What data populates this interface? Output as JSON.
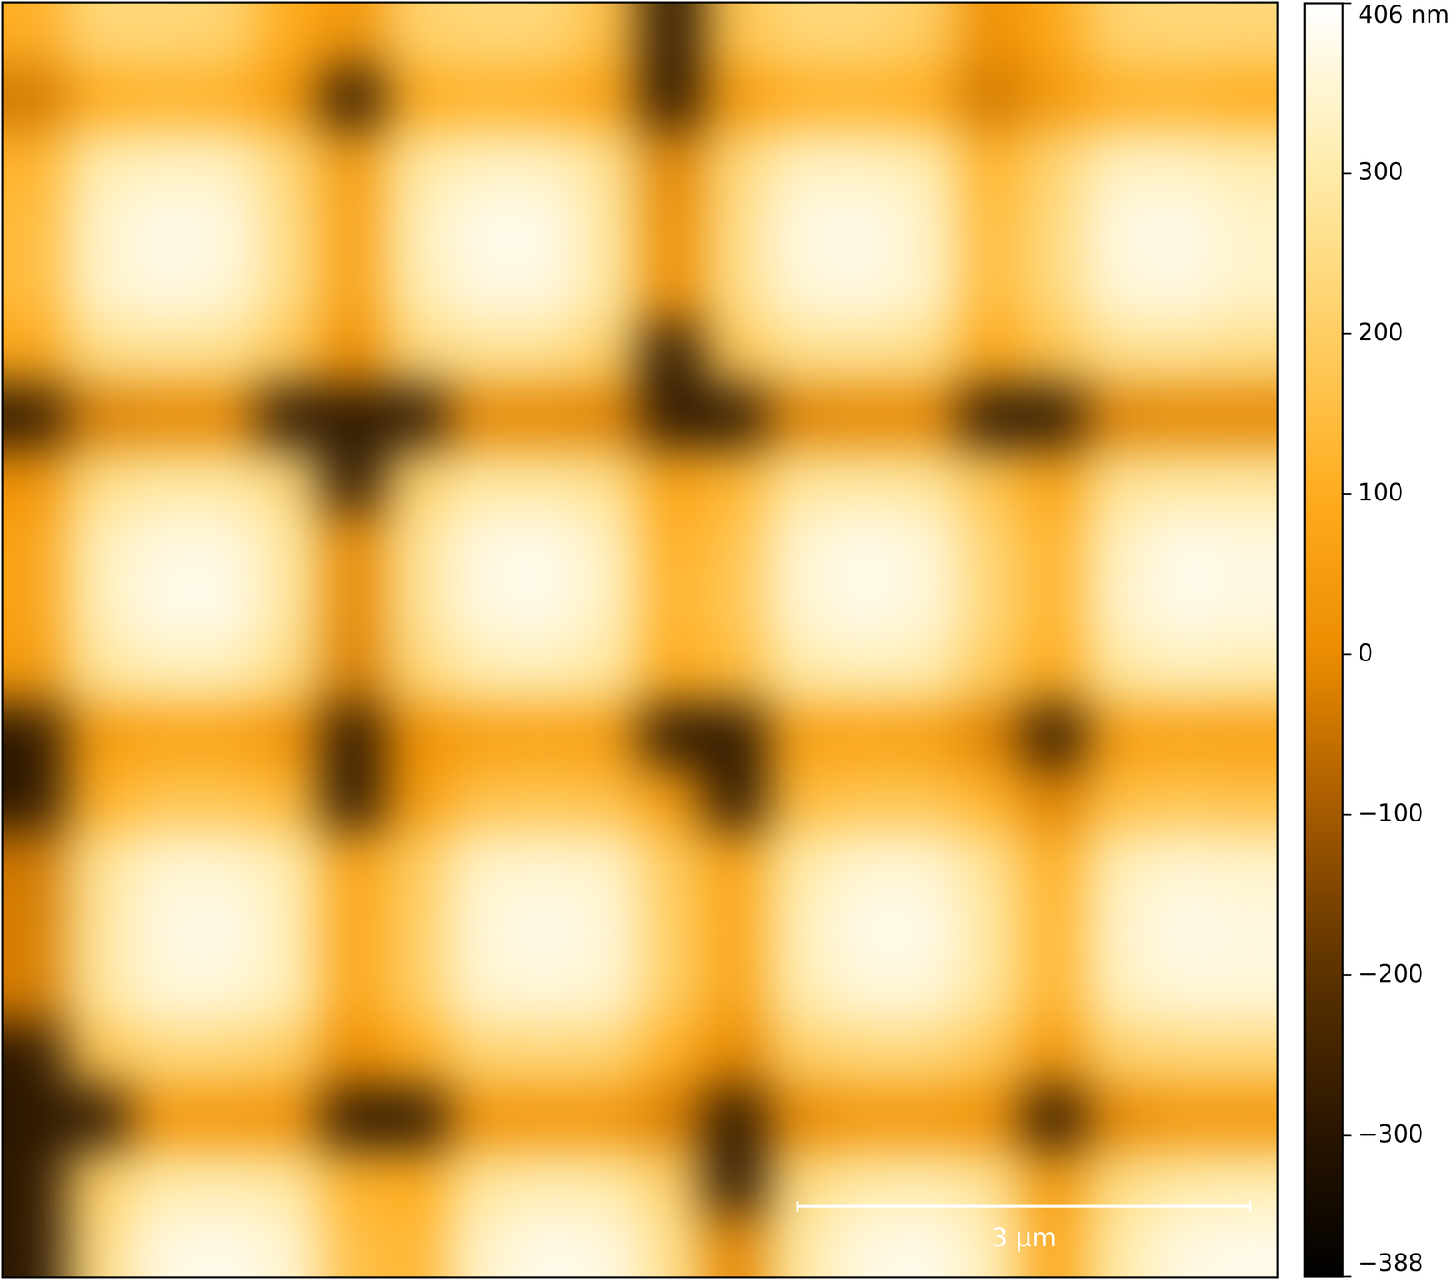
{
  "chart_data": {
    "type": "heatmap",
    "tick_labels": false,
    "xlim": [
      0,
      8.44
    ],
    "ylim": [
      0,
      8.44
    ],
    "cells": [
      [
        110,
        230,
        230,
        220,
        100,
        30,
        210,
        230,
        230,
        160,
        -290,
        170,
        230,
        230,
        200,
        10,
        90,
        220,
        230,
        230
      ],
      [
        -40,
        100,
        120,
        110,
        40,
        -290,
        90,
        120,
        110,
        70,
        -290,
        40,
        110,
        120,
        100,
        -40,
        40,
        110,
        120,
        100
      ],
      [
        120,
        310,
        330,
        330,
        230,
        40,
        290,
        330,
        330,
        270,
        -20,
        230,
        330,
        330,
        310,
        120,
        220,
        330,
        330,
        310
      ],
      [
        140,
        340,
        380,
        370,
        250,
        60,
        320,
        380,
        380,
        290,
        0,
        250,
        370,
        380,
        340,
        140,
        240,
        370,
        380,
        340
      ],
      [
        140,
        340,
        370,
        360,
        250,
        60,
        310,
        370,
        370,
        290,
        0,
        250,
        360,
        370,
        340,
        140,
        240,
        360,
        370,
        340
      ],
      [
        80,
        250,
        270,
        260,
        180,
        0,
        230,
        270,
        270,
        210,
        -290,
        180,
        260,
        270,
        250,
        80,
        170,
        260,
        270,
        250
      ],
      [
        -290,
        -30,
        -10,
        -10,
        -290,
        -290,
        -290,
        -10,
        -10,
        -20,
        -290,
        -290,
        -20,
        -10,
        -10,
        -290,
        -290,
        -20,
        -10,
        -10
      ],
      [
        20,
        250,
        290,
        290,
        230,
        -290,
        210,
        290,
        290,
        260,
        70,
        130,
        280,
        290,
        280,
        170,
        70,
        270,
        290,
        290
      ],
      [
        70,
        320,
        370,
        370,
        290,
        -10,
        270,
        370,
        380,
        330,
        110,
        170,
        350,
        380,
        360,
        220,
        120,
        330,
        380,
        370
      ],
      [
        70,
        320,
        380,
        380,
        290,
        -10,
        270,
        370,
        380,
        330,
        120,
        180,
        350,
        380,
        360,
        230,
        120,
        340,
        380,
        370
      ],
      [
        40,
        280,
        320,
        320,
        250,
        -30,
        230,
        310,
        320,
        290,
        90,
        140,
        300,
        320,
        310,
        190,
        90,
        290,
        320,
        310
      ],
      [
        -290,
        40,
        70,
        70,
        20,
        -290,
        10,
        60,
        70,
        50,
        -290,
        -290,
        60,
        70,
        60,
        -20,
        -290,
        50,
        70,
        60
      ],
      [
        -290,
        110,
        170,
        170,
        140,
        -290,
        50,
        160,
        170,
        160,
        50,
        -290,
        140,
        170,
        170,
        120,
        -20,
        150,
        170,
        160
      ],
      [
        -40,
        270,
        350,
        350,
        310,
        70,
        190,
        340,
        350,
        340,
        190,
        70,
        300,
        350,
        350,
        270,
        110,
        320,
        350,
        340
      ],
      [
        -30,
        280,
        370,
        380,
        320,
        80,
        200,
        360,
        380,
        360,
        200,
        80,
        320,
        380,
        380,
        290,
        120,
        340,
        380,
        370
      ],
      [
        -30,
        280,
        360,
        360,
        320,
        80,
        200,
        350,
        360,
        350,
        200,
        70,
        310,
        360,
        360,
        280,
        120,
        330,
        360,
        360
      ],
      [
        -290,
        170,
        230,
        230,
        200,
        0,
        100,
        220,
        230,
        220,
        110,
        -10,
        200,
        230,
        230,
        180,
        30,
        210,
        230,
        230
      ],
      [
        -290,
        -290,
        30,
        30,
        20,
        -290,
        -290,
        20,
        30,
        30,
        -30,
        -290,
        -10,
        30,
        30,
        10,
        -290,
        -10,
        30,
        30
      ],
      [
        -290,
        200,
        300,
        310,
        290,
        120,
        100,
        280,
        310,
        300,
        210,
        -290,
        240,
        300,
        310,
        270,
        40,
        250,
        300,
        310
      ],
      [
        -290,
        240,
        370,
        380,
        350,
        160,
        130,
        340,
        380,
        370,
        260,
        -10,
        290,
        370,
        380,
        320,
        80,
        300,
        370,
        380
      ]
    ],
    "colorbar": {
      "range": [
        -388,
        406
      ],
      "ticks": [
        {
          "value": 406,
          "label": "406 nm"
        },
        300,
        200,
        100,
        0,
        {
          "value": -100,
          "label": "−100"
        },
        {
          "value": -200,
          "label": "−200"
        },
        {
          "value": -300,
          "label": "−300"
        },
        {
          "value": -388,
          "label": "−388"
        }
      ]
    },
    "scale_bar": {
      "value": 3,
      "label": "3 µm"
    }
  }
}
